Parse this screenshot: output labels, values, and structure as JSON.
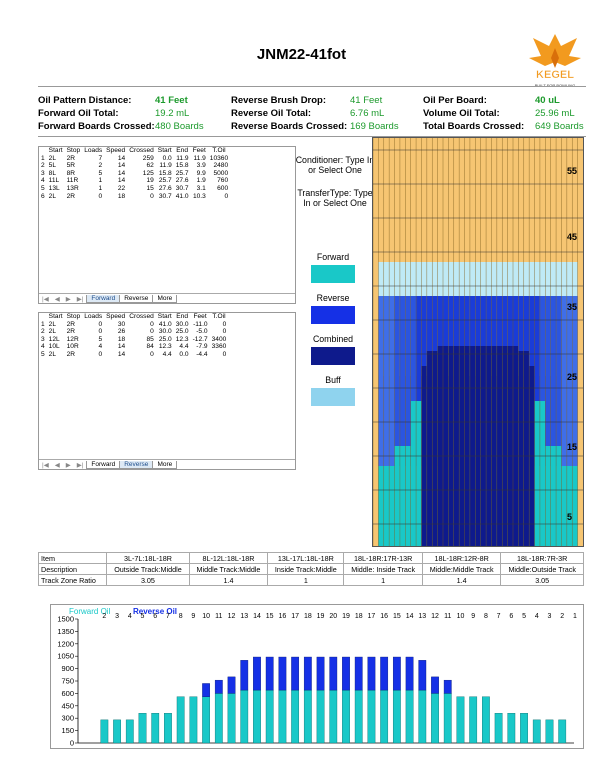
{
  "title": "JNM22-41fot",
  "logo": {
    "brand": "KEGEL",
    "tagline": "BUILT FOR BOWLING"
  },
  "stats": [
    [
      {
        "label": "Oil Pattern Distance:",
        "value": "41 Feet",
        "bold": true
      },
      {
        "label": "Reverse Brush Drop:",
        "value": "41 Feet",
        "bold": false
      },
      {
        "label": "Oil Per Board:",
        "value": "40 uL",
        "bold": true
      }
    ],
    [
      {
        "label": "Forward Oil Total:",
        "value": "19.2 mL",
        "bold": false
      },
      {
        "label": "Reverse Oil Total:",
        "value": "6.76 mL",
        "bold": false
      },
      {
        "label": "Volume Oil Total:",
        "value": "25.96 mL",
        "bold": false
      }
    ],
    [
      {
        "label": "Forward Boards Crossed:",
        "value": "480 Boards",
        "bold": false
      },
      {
        "label": "Reverse Boards Crossed:",
        "value": "169 Boards",
        "bold": false
      },
      {
        "label": "Total Boards Crossed:",
        "value": "649 Boards",
        "bold": false
      }
    ]
  ],
  "forward_sheet": {
    "headers": [
      "",
      "Start",
      "Stop",
      "Loads",
      "Speed",
      "Crossed",
      "Start",
      "End",
      "Feet",
      "T.Oil"
    ],
    "rows": [
      [
        "1",
        "2L",
        "2R",
        "7",
        "14",
        "259",
        "0.0",
        "11.9",
        "11.9",
        "10360"
      ],
      [
        "2",
        "5L",
        "5R",
        "2",
        "14",
        "62",
        "11.9",
        "15.8",
        "3.9",
        "2480"
      ],
      [
        "3",
        "8L",
        "8R",
        "5",
        "14",
        "125",
        "15.8",
        "25.7",
        "9.9",
        "5000"
      ],
      [
        "4",
        "11L",
        "11R",
        "1",
        "14",
        "19",
        "25.7",
        "27.6",
        "1.9",
        "760"
      ],
      [
        "5",
        "13L",
        "13R",
        "1",
        "22",
        "15",
        "27.6",
        "30.7",
        "3.1",
        "600"
      ],
      [
        "6",
        "2L",
        "2R",
        "0",
        "18",
        "0",
        "30.7",
        "41.0",
        "10.3",
        "0"
      ]
    ],
    "tabs": [
      "Forward",
      "Reverse",
      "More"
    ],
    "active_tab": "Forward"
  },
  "reverse_sheet": {
    "headers": [
      "",
      "Start",
      "Stop",
      "Loads",
      "Speed",
      "Crossed",
      "Start",
      "End",
      "Feet",
      "T.Oil"
    ],
    "rows": [
      [
        "1",
        "2L",
        "2R",
        "0",
        "30",
        "0",
        "41.0",
        "30.0",
        "-11.0",
        "0"
      ],
      [
        "2",
        "2L",
        "2R",
        "0",
        "26",
        "0",
        "30.0",
        "25.0",
        "-5.0",
        "0"
      ],
      [
        "3",
        "12L",
        "12R",
        "5",
        "18",
        "85",
        "25.0",
        "12.3",
        "-12.7",
        "3400"
      ],
      [
        "4",
        "10L",
        "10R",
        "4",
        "14",
        "84",
        "12.3",
        "4.4",
        "-7.9",
        "3360"
      ],
      [
        "5",
        "2L",
        "2R",
        "0",
        "14",
        "0",
        "4.4",
        "0.0",
        "-4.4",
        "0"
      ]
    ],
    "tabs": [
      "Forward",
      "Reverse",
      "More"
    ],
    "active_tab": "Reverse"
  },
  "conditioner_text": "Conditioner: Type In or Select One",
  "transfer_text": "TransferType: Type In or Select One",
  "legend": [
    {
      "label": "Forward",
      "color": "#19c8c8"
    },
    {
      "label": "Reverse",
      "color": "#1530e6"
    },
    {
      "label": "Combined",
      "color": "#0e1a8c"
    },
    {
      "label": "Buff",
      "color": "#8fd3ee"
    }
  ],
  "lane_markers": [
    "55",
    "45",
    "35",
    "25",
    "15",
    "5"
  ],
  "zones": {
    "row_labels": [
      "Item",
      "Description",
      "Track Zone Ratio"
    ],
    "columns": [
      {
        "item": "3L-7L:18L-18R",
        "desc": "Outside Track:Middle",
        "ratio": "3.05"
      },
      {
        "item": "8L-12L:18L-18R",
        "desc": "Middle Track:Middle",
        "ratio": "1.4"
      },
      {
        "item": "13L-17L:18L-18R",
        "desc": "Inside Track:Middle",
        "ratio": "1"
      },
      {
        "item": "18L-18R:17R-13R",
        "desc": "Middle: Inside Track",
        "ratio": "1"
      },
      {
        "item": "18L-18R:12R-8R",
        "desc": "Middle:Middle Track",
        "ratio": "1.4"
      },
      {
        "item": "18L-18R:7R-3R",
        "desc": "Middle:Outside Track",
        "ratio": "3.05"
      }
    ]
  },
  "colors": {
    "forward": "#19c8c8",
    "reverse": "#1530e6",
    "oil_amber": "#f6c572"
  },
  "chart_data": {
    "type": "bar",
    "stacked": true,
    "categories": [
      "2",
      "3",
      "4",
      "5",
      "6",
      "7",
      "8",
      "9",
      "10",
      "11",
      "12",
      "13",
      "14",
      "15",
      "16",
      "17",
      "18",
      "19",
      "20",
      "19",
      "18",
      "17",
      "16",
      "15",
      "14",
      "13",
      "12",
      "11",
      "10",
      "9",
      "8",
      "7",
      "6",
      "5",
      "4",
      "3",
      "2",
      "1",
      "0"
    ],
    "series": [
      {
        "name": "Forward Oil",
        "values": [
          280,
          280,
          280,
          360,
          360,
          360,
          560,
          560,
          560,
          600,
          600,
          640,
          640,
          640,
          640,
          640,
          640,
          640,
          640,
          640,
          640,
          640,
          640,
          640,
          640,
          640,
          600,
          600,
          560,
          560,
          560,
          360,
          360,
          360,
          280,
          280,
          280,
          0,
          0
        ]
      },
      {
        "name": "Reverse Oil",
        "values": [
          0,
          0,
          0,
          0,
          0,
          0,
          0,
          0,
          160,
          160,
          200,
          360,
          400,
          400,
          400,
          400,
          400,
          400,
          400,
          400,
          400,
          400,
          400,
          400,
          400,
          360,
          200,
          160,
          0,
          0,
          0,
          0,
          0,
          0,
          0,
          0,
          0,
          0,
          0
        ]
      }
    ],
    "ylim": [
      0,
      1500
    ],
    "yticks": [
      0,
      150,
      300,
      450,
      600,
      750,
      900,
      1050,
      1200,
      1350,
      1500
    ]
  }
}
